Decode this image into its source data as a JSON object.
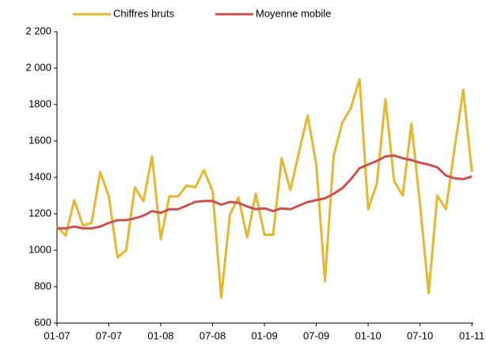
{
  "chart_data": {
    "type": "line",
    "legend": "top",
    "categories": [
      "01-07",
      null,
      null,
      null,
      null,
      null,
      "07-07",
      null,
      null,
      null,
      null,
      null,
      "01-08",
      null,
      null,
      null,
      null,
      null,
      "07-08",
      null,
      null,
      null,
      null,
      null,
      "01-09",
      null,
      null,
      null,
      null,
      null,
      "07-09",
      null,
      null,
      null,
      null,
      null,
      "01-10",
      null,
      null,
      null,
      null,
      null,
      "07-10",
      null,
      null,
      null,
      null,
      null,
      "01-11"
    ],
    "series": [
      {
        "name": "Chiffres bruts",
        "color": "#e6b731",
        "values": [
          1130,
          1080,
          1275,
          1135,
          1150,
          1430,
          1295,
          960,
          1000,
          1345,
          1270,
          1515,
          1060,
          1295,
          1295,
          1355,
          1345,
          1440,
          1325,
          740,
          1195,
          1290,
          1070,
          1310,
          1085,
          1085,
          1505,
          1330,
          1540,
          1740,
          1470,
          830,
          1515,
          1700,
          1780,
          1940,
          1225,
          1365,
          1830,
          1380,
          1300,
          1695,
          1250,
          765,
          1300,
          1225,
          1560,
          1880,
          1430
        ]
      },
      {
        "name": "Moyenne mobile",
        "color": "#c85250",
        "values": [
          1120,
          1120,
          1130,
          1120,
          1120,
          1130,
          1150,
          1165,
          1165,
          1175,
          1190,
          1215,
          1205,
          1225,
          1225,
          1245,
          1265,
          1270,
          1270,
          1250,
          1265,
          1260,
          1240,
          1225,
          1230,
          1215,
          1230,
          1225,
          1245,
          1265,
          1275,
          1285,
          1310,
          1340,
          1390,
          1450,
          1470,
          1490,
          1515,
          1520,
          1505,
          1495,
          1480,
          1470,
          1455,
          1410,
          1395,
          1390,
          1405
        ]
      }
    ],
    "ylim": [
      600,
      2200
    ],
    "yticks": [
      600,
      800,
      1000,
      1200,
      1400,
      1600,
      1800,
      {
        "value": 2000,
        "label": "2 000"
      },
      {
        "value": 2200,
        "label": "2 200"
      }
    ]
  }
}
